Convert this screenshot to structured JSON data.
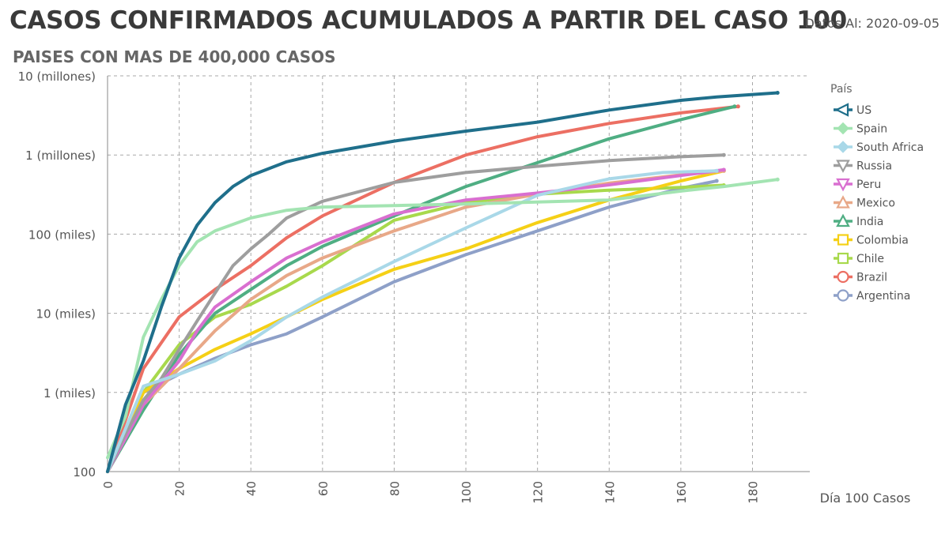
{
  "header": {
    "title": "CASOS CONFIRMADOS ACUMULADOS A PARTIR DEL CASO 100",
    "subtitle": "PAISES CON MAS DE 400,000 CASOS",
    "as_of": "Datos Al: 2020-09-05"
  },
  "chart_data": {
    "type": "line",
    "title": "CASOS CONFIRMADOS ACUMULADOS A PARTIR DEL CASO 100",
    "subtitle": "PAISES CON MAS DE 400,000 CASOS",
    "xlabel": "Día 100 Casos",
    "ylabel": "",
    "yscale": "log",
    "xlim": [
      0,
      196
    ],
    "ylim": [
      100,
      10000000
    ],
    "x_ticks": [
      0,
      20,
      40,
      60,
      80,
      100,
      120,
      140,
      160,
      180
    ],
    "y_ticks": [
      {
        "value": 100,
        "label": "100"
      },
      {
        "value": 1000,
        "label": "1 (miles)"
      },
      {
        "value": 10000,
        "label": "10 (miles)"
      },
      {
        "value": 100000,
        "label": "100 (miles)"
      },
      {
        "value": 1000000,
        "label": "1 (millones)"
      },
      {
        "value": 10000000,
        "label": "10 (millones)"
      }
    ],
    "grid": true,
    "legend_title": "País",
    "legend_position": "right",
    "series": [
      {
        "name": "US",
        "color": "#1f6f8b",
        "marker": "triangle-left",
        "x": [
          0,
          5,
          10,
          15,
          20,
          25,
          30,
          35,
          40,
          50,
          60,
          80,
          100,
          120,
          140,
          160,
          170,
          187
        ],
        "y": [
          100,
          700,
          2500,
          12000,
          50000,
          130000,
          250000,
          400000,
          550000,
          820000,
          1050000,
          1500000,
          2000000,
          2600000,
          3700000,
          4900000,
          5400000,
          6100000
        ]
      },
      {
        "name": "Spain",
        "color": "#a3e4b2",
        "marker": "diamond",
        "x": [
          0,
          5,
          10,
          15,
          20,
          25,
          30,
          40,
          50,
          60,
          80,
          100,
          140,
          160,
          172,
          187
        ],
        "y": [
          150,
          500,
          5000,
          15000,
          40000,
          80000,
          110000,
          160000,
          200000,
          220000,
          230000,
          240000,
          270000,
          350000,
          400000,
          490000
        ]
      },
      {
        "name": "South Africa",
        "color": "#a9d8e8",
        "marker": "diamond",
        "x": [
          0,
          10,
          20,
          30,
          40,
          50,
          60,
          80,
          100,
          120,
          140,
          155,
          170
        ],
        "y": [
          100,
          1200,
          1700,
          2500,
          4500,
          9000,
          16000,
          45000,
          120000,
          310000,
          500000,
          600000,
          630000
        ]
      },
      {
        "name": "Russia",
        "color": "#9e9e9e",
        "marker": "triangle-down",
        "x": [
          0,
          5,
          10,
          15,
          20,
          25,
          30,
          35,
          40,
          45,
          50,
          60,
          80,
          100,
          120,
          140,
          160,
          172
        ],
        "y": [
          100,
          300,
          800,
          1500,
          3500,
          8000,
          18000,
          40000,
          65000,
          100000,
          160000,
          260000,
          450000,
          600000,
          720000,
          850000,
          950000,
          1000000
        ]
      },
      {
        "name": "Peru",
        "color": "#d96fd0",
        "marker": "triangle-down",
        "x": [
          0,
          10,
          20,
          25,
          30,
          40,
          50,
          60,
          80,
          100,
          120,
          140,
          160,
          172
        ],
        "y": [
          100,
          700,
          2500,
          6000,
          12000,
          25000,
          50000,
          80000,
          180000,
          270000,
          330000,
          420000,
          550000,
          650000
        ]
      },
      {
        "name": "Mexico",
        "color": "#e8a888",
        "marker": "triangle-up",
        "x": [
          0,
          10,
          20,
          30,
          40,
          50,
          60,
          80,
          100,
          120,
          140,
          160,
          172
        ],
        "y": [
          100,
          700,
          2000,
          6000,
          15000,
          30000,
          50000,
          110000,
          220000,
          320000,
          440000,
          560000,
          630000
        ]
      },
      {
        "name": "India",
        "color": "#4fae83",
        "marker": "triangle-up",
        "x": [
          0,
          10,
          20,
          30,
          40,
          50,
          60,
          80,
          100,
          120,
          140,
          160,
          175
        ],
        "y": [
          100,
          600,
          3000,
          10000,
          20000,
          40000,
          70000,
          170000,
          400000,
          800000,
          1600000,
          2800000,
          4100000
        ]
      },
      {
        "name": "Colombia",
        "color": "#f5d016",
        "marker": "square",
        "x": [
          0,
          10,
          20,
          30,
          40,
          50,
          60,
          80,
          100,
          120,
          140,
          160,
          172
        ],
        "y": [
          100,
          1000,
          2000,
          3500,
          5500,
          9000,
          15000,
          36000,
          65000,
          140000,
          270000,
          470000,
          630000
        ]
      },
      {
        "name": "Chile",
        "color": "#a8d94c",
        "marker": "square",
        "x": [
          0,
          10,
          20,
          30,
          40,
          50,
          60,
          80,
          100,
          120,
          140,
          160,
          172
        ],
        "y": [
          100,
          1000,
          4000,
          9000,
          13000,
          22000,
          40000,
          150000,
          250000,
          320000,
          360000,
          390000,
          415000
        ]
      },
      {
        "name": "Brazil",
        "color": "#ec6f63",
        "marker": "circle",
        "x": [
          0,
          10,
          20,
          30,
          40,
          50,
          60,
          80,
          100,
          120,
          140,
          160,
          176
        ],
        "y": [
          100,
          2000,
          9000,
          20000,
          40000,
          90000,
          170000,
          450000,
          1000000,
          1700000,
          2500000,
          3400000,
          4100000
        ]
      },
      {
        "name": "Argentina",
        "color": "#8ea0c8",
        "marker": "circle",
        "x": [
          0,
          10,
          20,
          30,
          40,
          50,
          60,
          80,
          100,
          120,
          140,
          160,
          170
        ],
        "y": [
          100,
          1000,
          1700,
          2700,
          4000,
          5500,
          9000,
          25000,
          55000,
          110000,
          220000,
          380000,
          470000
        ]
      }
    ]
  }
}
